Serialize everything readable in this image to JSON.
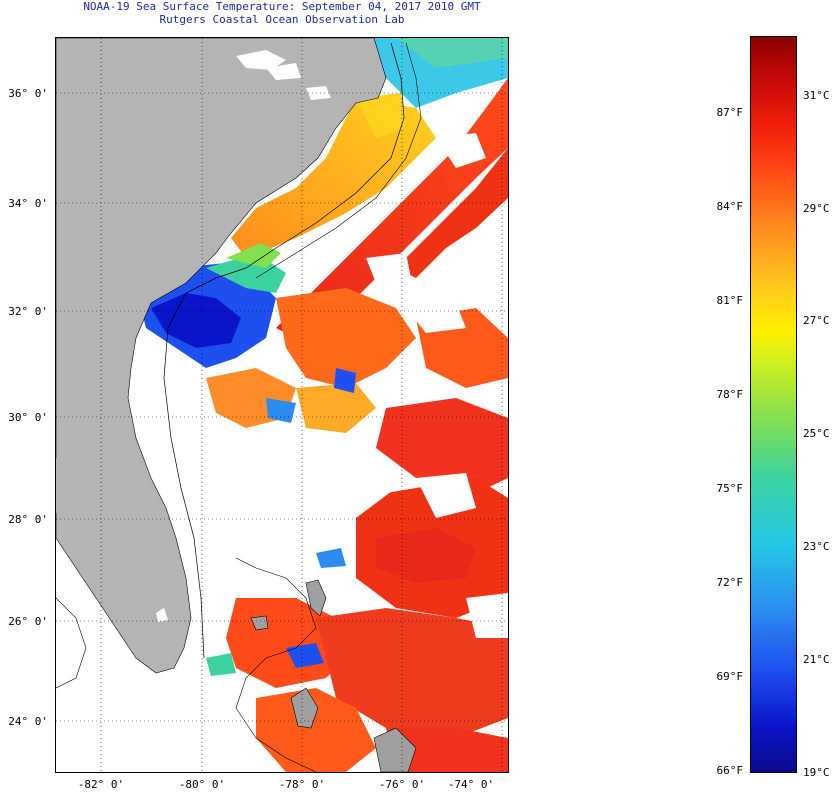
{
  "title": {
    "line1": "NOAA-19 Sea Surface Temperature:  September 04, 2017 2010 GMT",
    "line2": "Rutgers Coastal Ocean Observation Lab"
  },
  "map": {
    "region": "US Southeast coast and Bahamas",
    "lat_labels": [
      "36° 0'",
      "34° 0'",
      "32° 0'",
      "30° 0'",
      "28° 0'",
      "26° 0'",
      "24° 0'"
    ],
    "lon_labels": [
      "-82° 0'",
      "-80° 0'",
      "-78° 0'",
      "-76° 0'",
      "-74° 0'"
    ],
    "land_color": "#b4b4b4",
    "cloud_color": "#ffffff"
  },
  "colorbar": {
    "fahrenheit": [
      "87°F",
      "84°F",
      "81°F",
      "78°F",
      "75°F",
      "72°F",
      "69°F",
      "66°F"
    ],
    "celsius": [
      "31°C",
      "29°C",
      "27°C",
      "25°C",
      "23°C",
      "21°C",
      "19°C"
    ],
    "min_color": "#0a0a8c",
    "max_color": "#8c0000"
  }
}
